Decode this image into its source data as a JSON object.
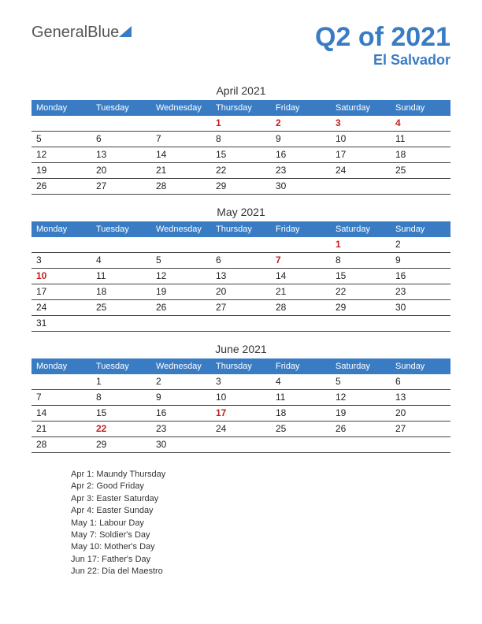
{
  "logo": {
    "text1": "General",
    "text2": "Blue"
  },
  "header": {
    "title": "Q2 of 2021",
    "subtitle": "El Salvador"
  },
  "colors": {
    "accent": "#3a7cc4",
    "holiday": "#c41e1e",
    "text": "#333333",
    "border": "#444444",
    "header_bg": "#3a7cc4",
    "header_fg": "#ffffff",
    "background": "#ffffff"
  },
  "weekdays": [
    "Monday",
    "Tuesday",
    "Wednesday",
    "Thursday",
    "Friday",
    "Saturday",
    "Sunday"
  ],
  "months": [
    {
      "title": "April 2021",
      "weeks": [
        [
          {
            "d": ""
          },
          {
            "d": ""
          },
          {
            "d": ""
          },
          {
            "d": "1",
            "h": true
          },
          {
            "d": "2",
            "h": true
          },
          {
            "d": "3",
            "h": true
          },
          {
            "d": "4",
            "h": true
          }
        ],
        [
          {
            "d": "5"
          },
          {
            "d": "6"
          },
          {
            "d": "7"
          },
          {
            "d": "8"
          },
          {
            "d": "9"
          },
          {
            "d": "10"
          },
          {
            "d": "11"
          }
        ],
        [
          {
            "d": "12"
          },
          {
            "d": "13"
          },
          {
            "d": "14"
          },
          {
            "d": "15"
          },
          {
            "d": "16"
          },
          {
            "d": "17"
          },
          {
            "d": "18"
          }
        ],
        [
          {
            "d": "19"
          },
          {
            "d": "20"
          },
          {
            "d": "21"
          },
          {
            "d": "22"
          },
          {
            "d": "23"
          },
          {
            "d": "24"
          },
          {
            "d": "25"
          }
        ],
        [
          {
            "d": "26"
          },
          {
            "d": "27"
          },
          {
            "d": "28"
          },
          {
            "d": "29"
          },
          {
            "d": "30"
          },
          {
            "d": ""
          },
          {
            "d": ""
          }
        ]
      ]
    },
    {
      "title": "May 2021",
      "weeks": [
        [
          {
            "d": ""
          },
          {
            "d": ""
          },
          {
            "d": ""
          },
          {
            "d": ""
          },
          {
            "d": ""
          },
          {
            "d": "1",
            "h": true
          },
          {
            "d": "2"
          }
        ],
        [
          {
            "d": "3"
          },
          {
            "d": "4"
          },
          {
            "d": "5"
          },
          {
            "d": "6"
          },
          {
            "d": "7",
            "h": true
          },
          {
            "d": "8"
          },
          {
            "d": "9"
          }
        ],
        [
          {
            "d": "10",
            "h": true
          },
          {
            "d": "11"
          },
          {
            "d": "12"
          },
          {
            "d": "13"
          },
          {
            "d": "14"
          },
          {
            "d": "15"
          },
          {
            "d": "16"
          }
        ],
        [
          {
            "d": "17"
          },
          {
            "d": "18"
          },
          {
            "d": "19"
          },
          {
            "d": "20"
          },
          {
            "d": "21"
          },
          {
            "d": "22"
          },
          {
            "d": "23"
          }
        ],
        [
          {
            "d": "24"
          },
          {
            "d": "25"
          },
          {
            "d": "26"
          },
          {
            "d": "27"
          },
          {
            "d": "28"
          },
          {
            "d": "29"
          },
          {
            "d": "30"
          }
        ],
        [
          {
            "d": "31"
          },
          {
            "d": ""
          },
          {
            "d": ""
          },
          {
            "d": ""
          },
          {
            "d": ""
          },
          {
            "d": ""
          },
          {
            "d": ""
          }
        ]
      ]
    },
    {
      "title": "June 2021",
      "weeks": [
        [
          {
            "d": ""
          },
          {
            "d": "1"
          },
          {
            "d": "2"
          },
          {
            "d": "3"
          },
          {
            "d": "4"
          },
          {
            "d": "5"
          },
          {
            "d": "6"
          }
        ],
        [
          {
            "d": "7"
          },
          {
            "d": "8"
          },
          {
            "d": "9"
          },
          {
            "d": "10"
          },
          {
            "d": "11"
          },
          {
            "d": "12"
          },
          {
            "d": "13"
          }
        ],
        [
          {
            "d": "14"
          },
          {
            "d": "15"
          },
          {
            "d": "16"
          },
          {
            "d": "17",
            "h": true
          },
          {
            "d": "18"
          },
          {
            "d": "19"
          },
          {
            "d": "20"
          }
        ],
        [
          {
            "d": "21"
          },
          {
            "d": "22",
            "h": true
          },
          {
            "d": "23"
          },
          {
            "d": "24"
          },
          {
            "d": "25"
          },
          {
            "d": "26"
          },
          {
            "d": "27"
          }
        ],
        [
          {
            "d": "28"
          },
          {
            "d": "29"
          },
          {
            "d": "30"
          },
          {
            "d": ""
          },
          {
            "d": ""
          },
          {
            "d": ""
          },
          {
            "d": ""
          }
        ]
      ]
    }
  ],
  "holidays": [
    "Apr 1: Maundy Thursday",
    "Apr 2: Good Friday",
    "Apr 3: Easter Saturday",
    "Apr 4: Easter Sunday",
    "May 1: Labour Day",
    "May 7: Soldier's Day",
    "May 10: Mother's Day",
    "Jun 17: Father's Day",
    "Jun 22: Día del Maestro"
  ]
}
